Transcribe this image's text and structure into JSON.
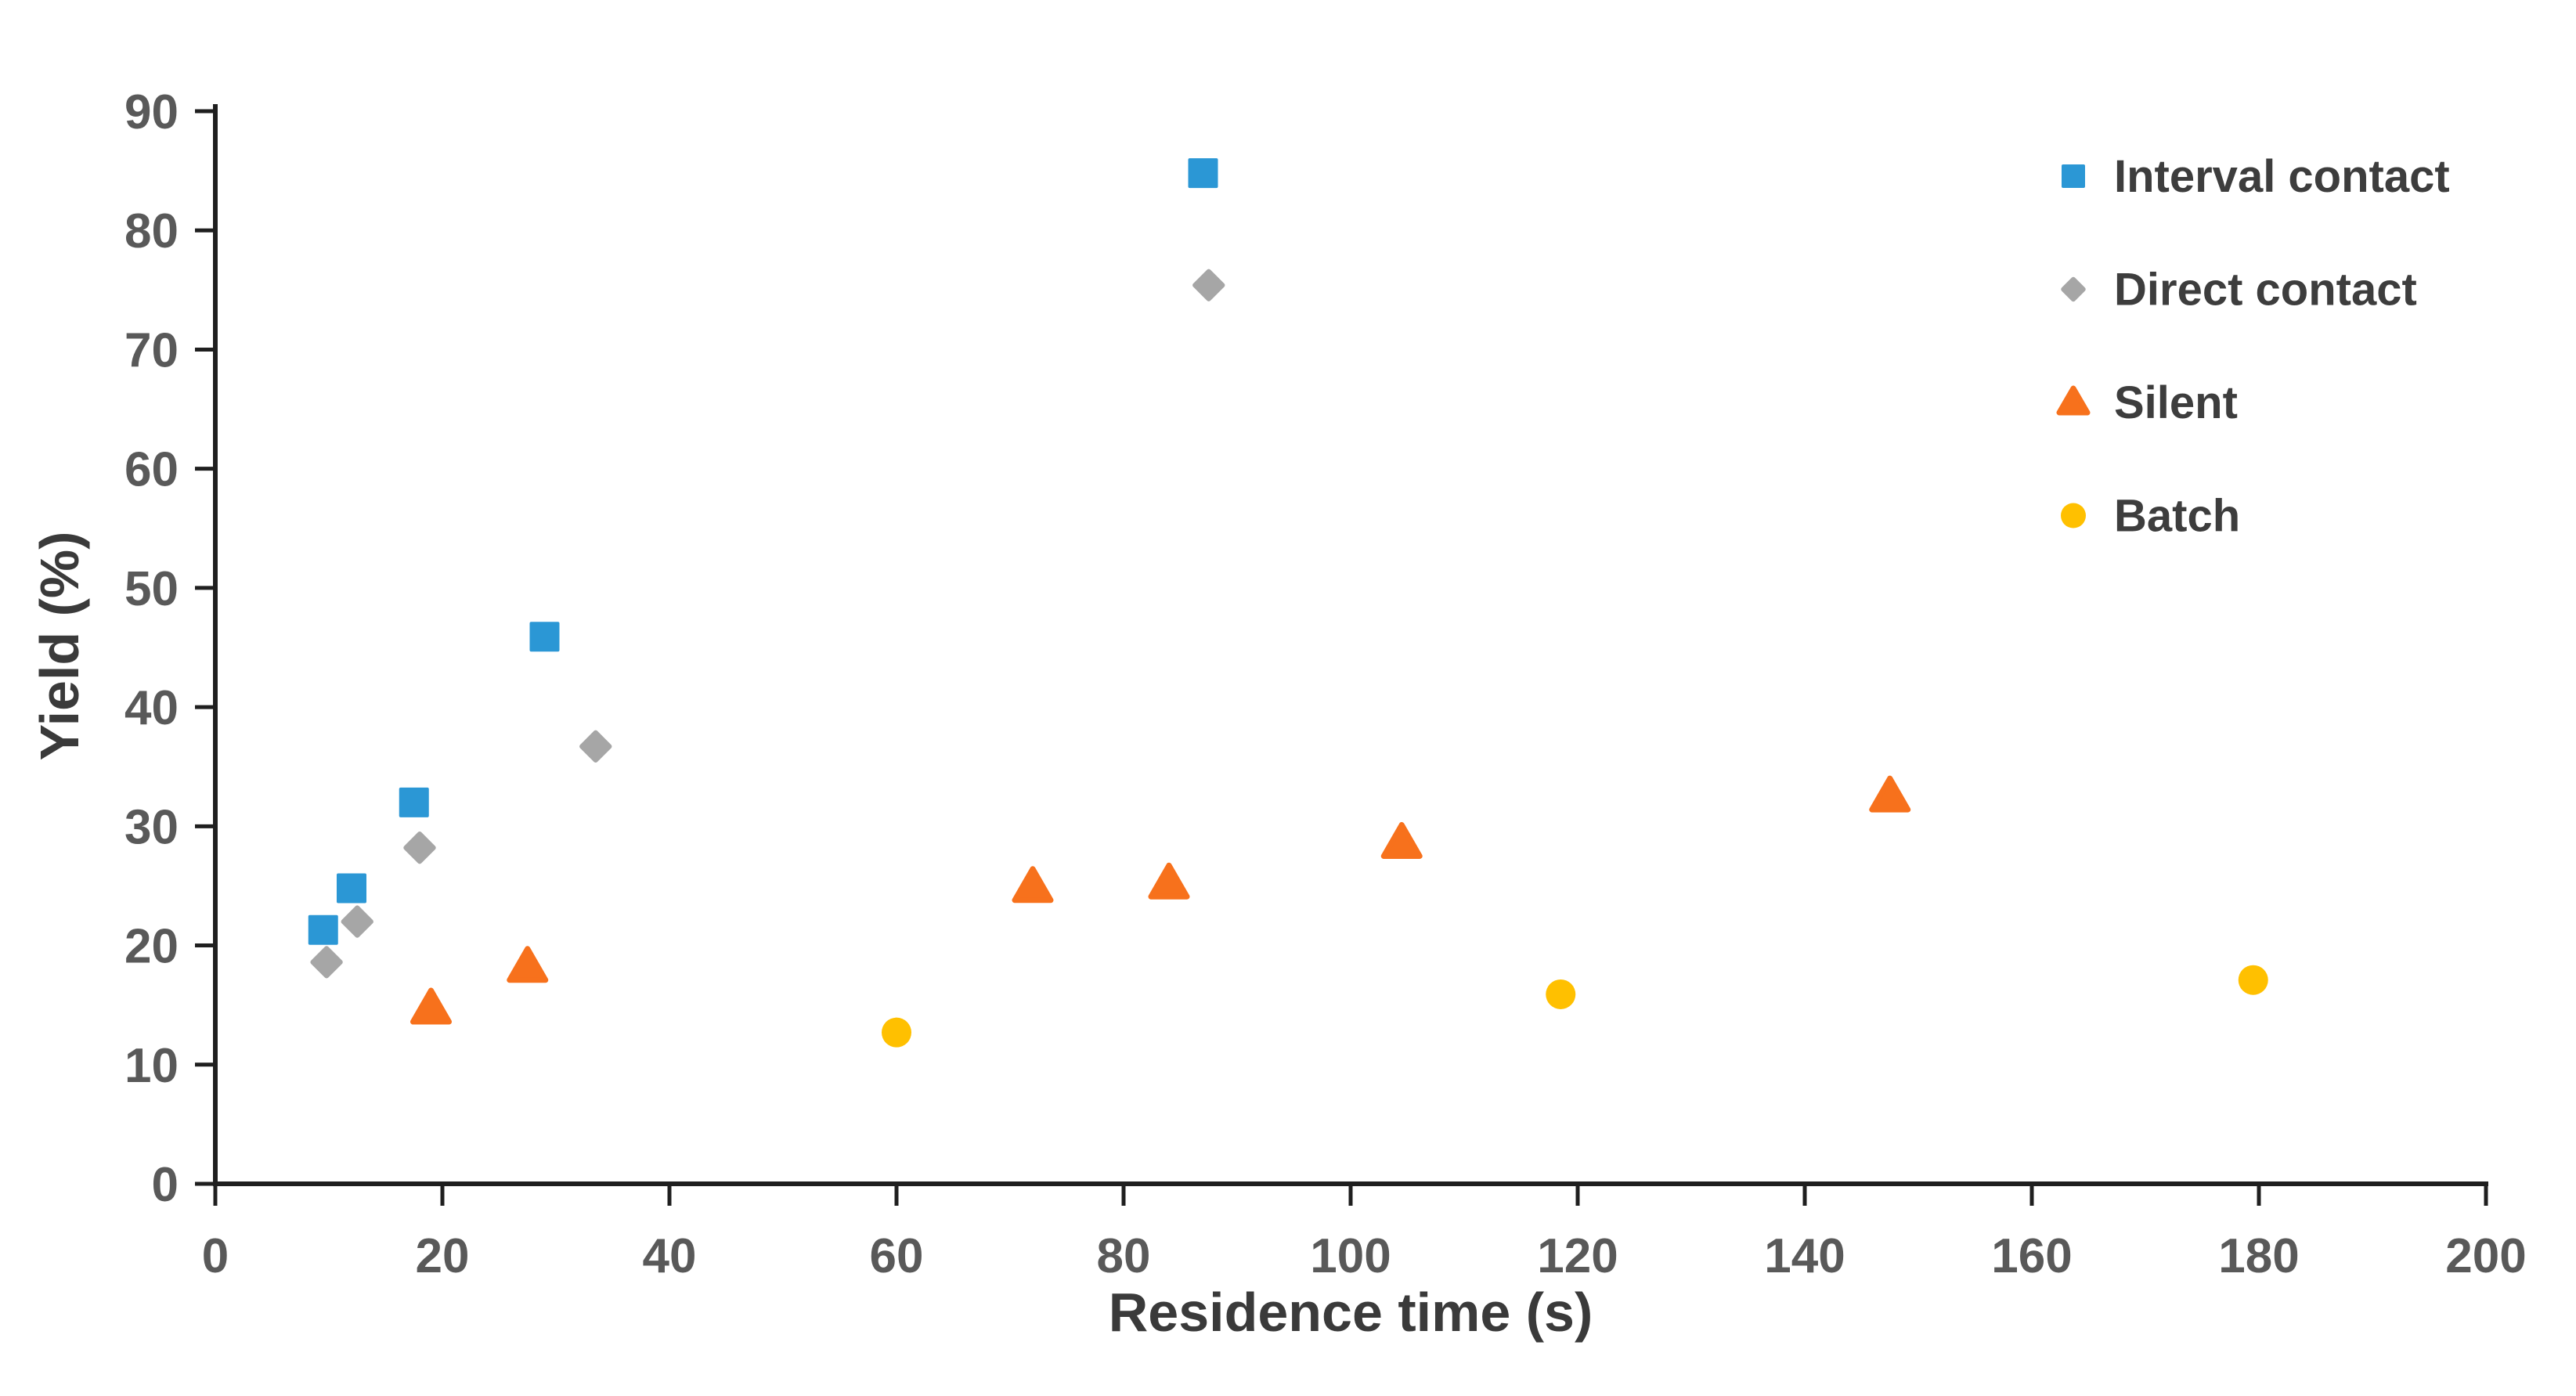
{
  "chart_data": {
    "type": "scatter",
    "title": "",
    "xlabel": "Residence time (s)",
    "ylabel": "Yield (%)",
    "xlim": [
      0,
      200
    ],
    "ylim": [
      0,
      90
    ],
    "x_ticks": [
      0,
      20,
      40,
      60,
      80,
      100,
      120,
      140,
      160,
      180,
      200
    ],
    "y_ticks": [
      0,
      10,
      20,
      30,
      40,
      50,
      60,
      70,
      80,
      90
    ],
    "grid": false,
    "legend_position": "top-right",
    "background_color": "#ffffff",
    "axis_color": "#1f1f1f",
    "tick_label_color": "#595959",
    "axis_title_color": "#3a3a3a",
    "legend_text_color": "#3d3d3d",
    "series": [
      {
        "name": "Interval contact",
        "marker": "square",
        "color": "#2B97D5",
        "points": [
          [
            9.5,
            21.3
          ],
          [
            12,
            24.8
          ],
          [
            17.5,
            32.0
          ],
          [
            29,
            45.9
          ],
          [
            87,
            84.8
          ]
        ]
      },
      {
        "name": "Direct contact",
        "marker": "diamond",
        "color": "#A6A6A6",
        "points": [
          [
            9.8,
            18.6
          ],
          [
            12.5,
            22.0
          ],
          [
            18,
            28.2
          ],
          [
            33.5,
            36.7
          ],
          [
            87.5,
            75.4
          ]
        ]
      },
      {
        "name": "Silent",
        "marker": "triangle",
        "color": "#F7711C",
        "points": [
          [
            19,
            14.7
          ],
          [
            27.5,
            18.2
          ],
          [
            72,
            24.9
          ],
          [
            84,
            25.2
          ],
          [
            104.5,
            28.6
          ],
          [
            147.5,
            32.5
          ]
        ]
      },
      {
        "name": "Batch",
        "marker": "circle",
        "color": "#FFC000",
        "points": [
          [
            60,
            12.7
          ],
          [
            118.5,
            15.9
          ],
          [
            179.5,
            17.1
          ]
        ]
      }
    ]
  }
}
